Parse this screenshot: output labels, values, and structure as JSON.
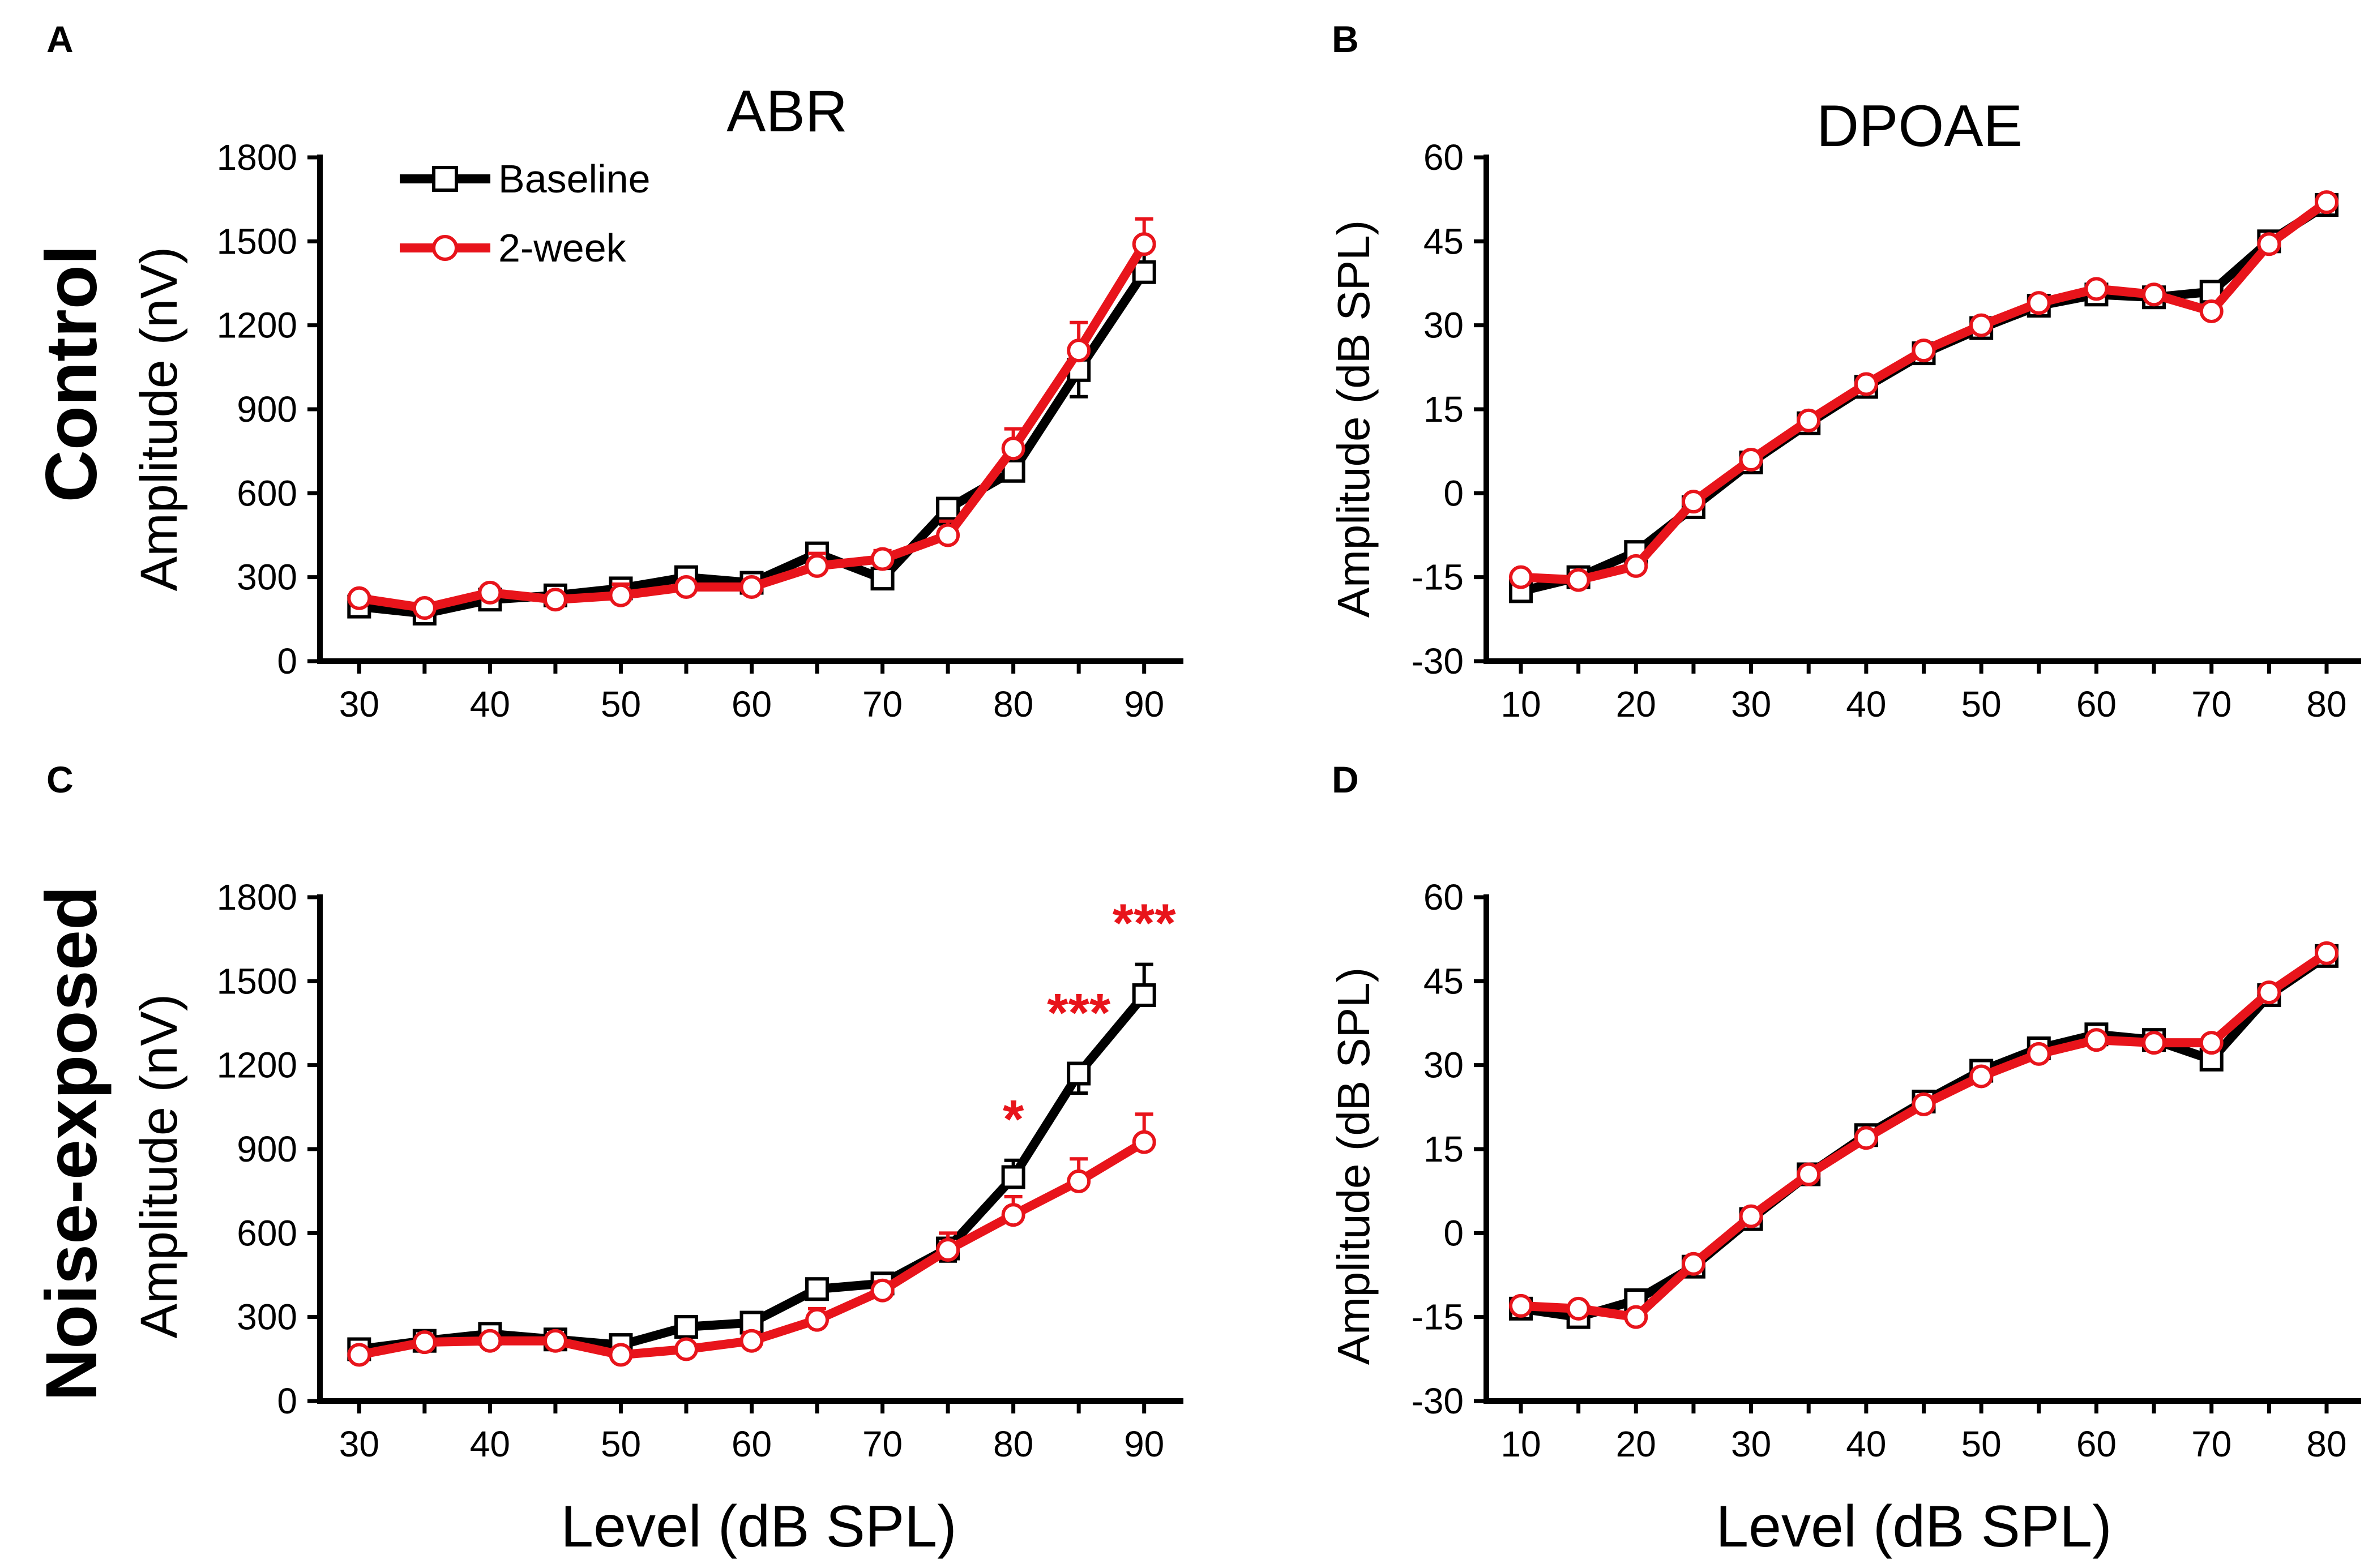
{
  "colors": {
    "baseline": "#000000",
    "week2": "#e8141b"
  },
  "row_labels": {
    "top": "Control",
    "bottom": "Noise-exposed"
  },
  "legend": {
    "baseline": "Baseline",
    "week2": "2-week"
  },
  "x_label_bottom": "Level (dB SPL)",
  "chart_data": [
    {
      "panel": "A",
      "type": "line",
      "title": "ABR",
      "ylabel": "Amplitude (nV)",
      "xlabel": "",
      "xlim": [
        27,
        93
      ],
      "ylim": [
        0,
        1800
      ],
      "xticks": [
        30,
        40,
        50,
        60,
        70,
        80,
        90
      ],
      "yticks": [
        0,
        300,
        600,
        900,
        1200,
        1500,
        1800
      ],
      "x": [
        30,
        35,
        40,
        45,
        50,
        55,
        60,
        65,
        70,
        75,
        80,
        85,
        90
      ],
      "series": [
        {
          "name": "Baseline",
          "marker": "square",
          "values": [
            195,
            170,
            220,
            235,
            260,
            300,
            280,
            385,
            295,
            545,
            680,
            1040,
            1390
          ],
          "errors": [
            15,
            15,
            15,
            15,
            20,
            20,
            20,
            25,
            40,
            55,
            70,
            95,
            110
          ]
        },
        {
          "name": "2-week",
          "marker": "circle",
          "values": [
            225,
            190,
            245,
            220,
            235,
            265,
            265,
            340,
            365,
            450,
            760,
            1110,
            1490
          ],
          "errors": [
            15,
            15,
            15,
            15,
            40,
            20,
            15,
            45,
            30,
            50,
            70,
            100,
            90
          ]
        }
      ],
      "annotations": []
    },
    {
      "panel": "B",
      "type": "line",
      "title": "DPOAE",
      "ylabel": "Amplitude (dB SPL)",
      "xlabel": "",
      "xlim": [
        7,
        83
      ],
      "ylim": [
        -30,
        60
      ],
      "xticks": [
        10,
        20,
        30,
        40,
        50,
        60,
        70,
        80
      ],
      "yticks": [
        -30,
        -15,
        0,
        15,
        30,
        45,
        60
      ],
      "x": [
        10,
        15,
        20,
        25,
        30,
        35,
        40,
        45,
        50,
        55,
        60,
        65,
        70,
        75,
        80
      ],
      "series": [
        {
          "name": "Baseline",
          "marker": "square",
          "values": [
            -17.5,
            -15,
            -10.5,
            -2.5,
            5.5,
            12.5,
            19,
            25,
            29.5,
            33.5,
            35.5,
            35,
            36,
            45,
            51.5
          ]
        },
        {
          "name": "2-week",
          "marker": "circle",
          "values": [
            -15,
            -15.5,
            -13,
            -1.5,
            6,
            13,
            19.5,
            25.5,
            30,
            34,
            36.5,
            35.5,
            32.5,
            44.5,
            52
          ]
        }
      ],
      "annotations": []
    },
    {
      "panel": "C",
      "type": "line",
      "title": "",
      "ylabel": "Amplitude (nV)",
      "xlabel": "Level (dB SPL)",
      "xlim": [
        27,
        93
      ],
      "ylim": [
        0,
        1800
      ],
      "xticks": [
        30,
        40,
        50,
        60,
        70,
        80,
        90
      ],
      "yticks": [
        0,
        300,
        600,
        900,
        1200,
        1500,
        1800
      ],
      "x": [
        30,
        35,
        40,
        45,
        50,
        55,
        60,
        65,
        70,
        75,
        80,
        85,
        90
      ],
      "series": [
        {
          "name": "Baseline",
          "marker": "square",
          "values": [
            185,
            215,
            240,
            220,
            200,
            265,
            280,
            400,
            420,
            545,
            800,
            1170,
            1450
          ],
          "errors": [
            15,
            15,
            15,
            15,
            15,
            15,
            15,
            20,
            25,
            45,
            60,
            70,
            110
          ]
        },
        {
          "name": "2-week",
          "marker": "circle",
          "values": [
            165,
            210,
            215,
            215,
            165,
            185,
            215,
            290,
            395,
            540,
            665,
            785,
            925
          ],
          "errors": [
            15,
            15,
            15,
            15,
            15,
            15,
            30,
            40,
            30,
            60,
            65,
            80,
            100
          ]
        }
      ],
      "annotations": [
        {
          "x": 80,
          "text": "*"
        },
        {
          "x": 85,
          "text": "***"
        },
        {
          "x": 90,
          "text": "***"
        }
      ]
    },
    {
      "panel": "D",
      "type": "line",
      "title": "",
      "ylabel": "Amplitude (dB SPL)",
      "xlabel": "Level (dB SPL)",
      "xlim": [
        7,
        83
      ],
      "ylim": [
        -30,
        60
      ],
      "xticks": [
        10,
        20,
        30,
        40,
        50,
        60,
        70,
        80
      ],
      "yticks": [
        -30,
        -15,
        0,
        15,
        30,
        45,
        60
      ],
      "x": [
        10,
        15,
        20,
        25,
        30,
        35,
        40,
        45,
        50,
        55,
        60,
        65,
        70,
        75,
        80
      ],
      "series": [
        {
          "name": "Baseline",
          "marker": "square",
          "values": [
            -13.5,
            -15,
            -12,
            -6,
            2.5,
            10.5,
            17.5,
            23.5,
            29,
            33,
            35.5,
            34.5,
            31,
            42.5,
            49.5
          ]
        },
        {
          "name": "2-week",
          "marker": "circle",
          "values": [
            -13,
            -13.5,
            -15,
            -5.5,
            3,
            10.5,
            17,
            23,
            28,
            32,
            34.5,
            34,
            34,
            43,
            50
          ]
        }
      ],
      "annotations": []
    }
  ]
}
